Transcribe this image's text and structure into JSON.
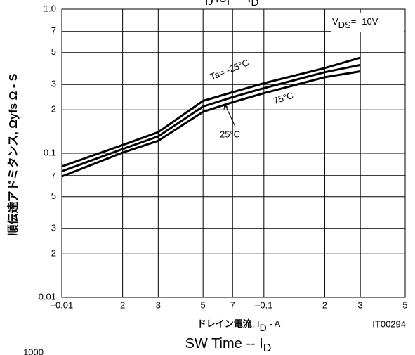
{
  "chart_data": {
    "type": "line",
    "title": "|yfs|  --  I",
    "title_sub": "D",
    "xlabel_parts": [
      "ドレイン電流",
      ",  I",
      "D",
      "  -  A"
    ],
    "ylabel": "順伝達アドミタンス,  Ωyfs Ω  -  S",
    "annotation": {
      "main": "V",
      "sub": "DS",
      "rest": "= -10V"
    },
    "code": "IT00294",
    "xlog": true,
    "ylog": true,
    "grid": true,
    "xlim": [
      0.01,
      0.5
    ],
    "ylim": [
      0.01,
      1
    ],
    "xticks": [
      {
        "value": 0.01,
        "label": "–0.01"
      },
      {
        "value": 0.02,
        "label": "2"
      },
      {
        "value": 0.03,
        "label": "3"
      },
      {
        "value": 0.05,
        "label": "5"
      },
      {
        "value": 0.07,
        "label": "7"
      },
      {
        "value": 0.1,
        "label": "–0.1"
      },
      {
        "value": 0.2,
        "label": "2"
      },
      {
        "value": 0.3,
        "label": "3"
      },
      {
        "value": 0.5,
        "label": "5"
      }
    ],
    "yticks": [
      0.01,
      {
        "value": 0.02,
        "label": "2"
      },
      {
        "value": 0.03,
        "label": "3"
      },
      {
        "value": 0.05,
        "label": "5"
      },
      {
        "value": 0.07,
        "label": "7"
      },
      0.1,
      {
        "value": 0.2,
        "label": "2"
      },
      {
        "value": 0.3,
        "label": "3"
      },
      {
        "value": 0.5,
        "label": "5"
      },
      {
        "value": 0.7,
        "label": "7"
      },
      {
        "value": 1,
        "label": "1.0"
      }
    ],
    "x": [
      0.01,
      0.02,
      0.03,
      0.05,
      0.07,
      0.1,
      0.2,
      0.3
    ],
    "series": [
      {
        "name": "Ta= -25°C",
        "color": "#000000",
        "values": [
          0.081,
          0.114,
          0.14,
          0.231,
          0.265,
          0.306,
          0.39,
          0.46
        ]
      },
      {
        "name": "25°C",
        "color": "#000000",
        "values": [
          0.075,
          0.107,
          0.131,
          0.211,
          0.245,
          0.283,
          0.365,
          0.41
        ]
      },
      {
        "name": "75°C",
        "color": "#000000",
        "values": [
          0.069,
          0.101,
          0.122,
          0.194,
          0.226,
          0.261,
          0.337,
          0.37
        ]
      }
    ]
  },
  "next_chart": {
    "title": "SW Time  --  I",
    "title_sub": "D",
    "ytick": "1000"
  }
}
